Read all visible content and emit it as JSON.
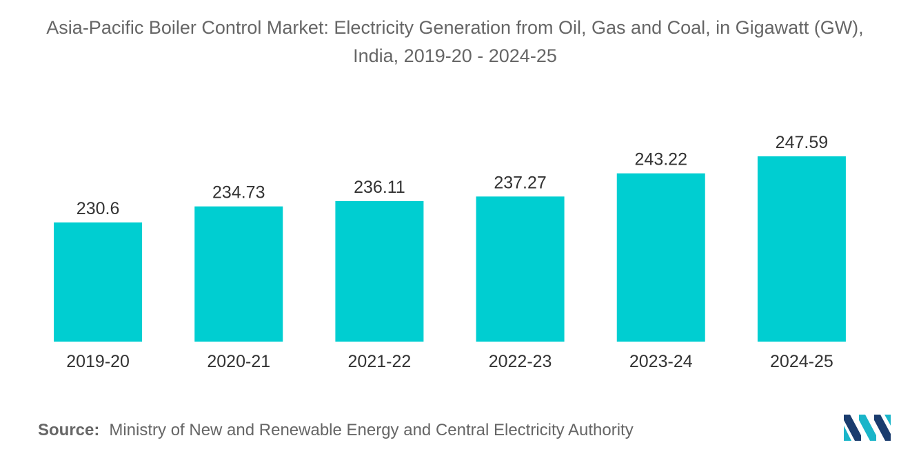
{
  "chart_data": {
    "type": "bar",
    "title": "Asia-Pacific Boiler Control Market: Electricity Generation from Oil, Gas and Coal, in Gigawatt (GW), India, 2019-20 - 2024-25",
    "categories": [
      "2019-20",
      "2020-21",
      "2021-22",
      "2022-23",
      "2023-24",
      "2024-25"
    ],
    "series": [
      {
        "name": "Electricity Generation (GW)",
        "values": [
          230.6,
          234.73,
          236.11,
          237.27,
          243.22,
          247.59
        ]
      }
    ],
    "data_labels": [
      "230.6",
      "234.73",
      "236.11",
      "237.27",
      "243.22",
      "247.59"
    ],
    "xlabel": "",
    "ylabel": "",
    "ylim": [
      0,
      250
    ],
    "grid": false,
    "axis_visible": false,
    "legend": "none",
    "bar_color": "#00CED1"
  },
  "source": {
    "label": "Source:",
    "text": "Ministry of New and Renewable Energy and Central Electricity Authority"
  },
  "logo": {
    "icon": "mordor-intelligence-logo-icon",
    "colors": [
      "#1a3c6e",
      "#1ab5c9"
    ]
  }
}
